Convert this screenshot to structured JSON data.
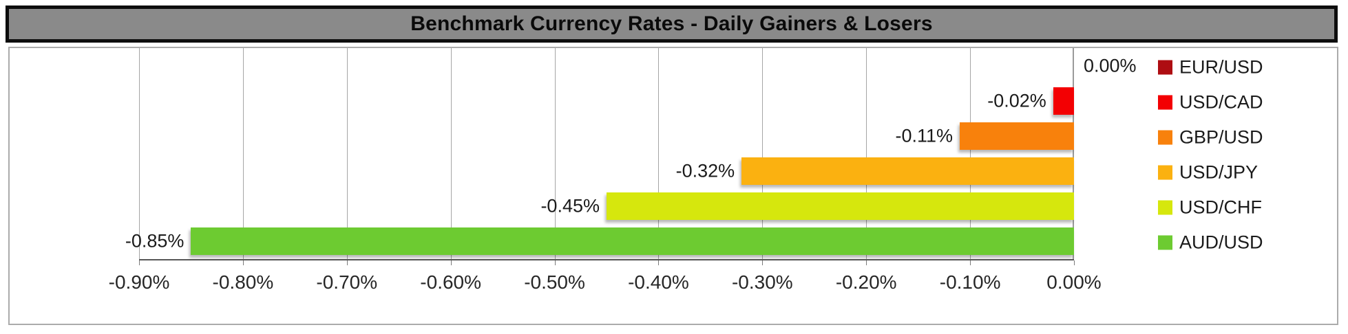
{
  "title": "Benchmark Currency Rates - Daily Gainers & Losers",
  "chart_data": {
    "type": "bar",
    "orientation": "horizontal",
    "title": "Benchmark Currency Rates - Daily Gainers & Losers",
    "categories": [
      "EUR/USD",
      "USD/CAD",
      "GBP/USD",
      "USD/JPY",
      "USD/CHF",
      "AUD/USD"
    ],
    "values": [
      0.0,
      -0.02,
      -0.11,
      -0.32,
      -0.45,
      -0.85
    ],
    "data_labels": [
      "0.00%",
      "-0.02%",
      "-0.11%",
      "-0.32%",
      "-0.45%",
      "-0.85%"
    ],
    "bar_colors": [
      "#AE0D12",
      "#F30003",
      "#F8810C",
      "#FBB110",
      "#D6E70D",
      "#6DCB31"
    ],
    "xlim": [
      -0.9,
      0
    ],
    "x_tick_values": [
      -0.9,
      -0.8,
      -0.7,
      -0.6,
      -0.5,
      -0.4,
      -0.3,
      -0.2,
      -0.1,
      0
    ],
    "x_tick_labels": [
      "-0.90%",
      "-0.80%",
      "-0.70%",
      "-0.60%",
      "-0.50%",
      "-0.40%",
      "-0.30%",
      "-0.20%",
      "-0.10%",
      "0.00%"
    ],
    "grid": true,
    "legend_position": "right",
    "legend": [
      {
        "label": "EUR/USD",
        "color": "#AE0D12"
      },
      {
        "label": "USD/CAD",
        "color": "#F30003"
      },
      {
        "label": "GBP/USD",
        "color": "#F8810C"
      },
      {
        "label": "USD/JPY",
        "color": "#FBB110"
      },
      {
        "label": "USD/CHF",
        "color": "#D6E70D"
      },
      {
        "label": "AUD/USD",
        "color": "#6DCB31"
      }
    ],
    "style": {
      "title_bg": "#8A8A8A",
      "title_border": "#0D0D0D",
      "container_border": "#ABABAB",
      "gridline_color": "#A5A5A5",
      "axis_color": "#575757"
    }
  }
}
